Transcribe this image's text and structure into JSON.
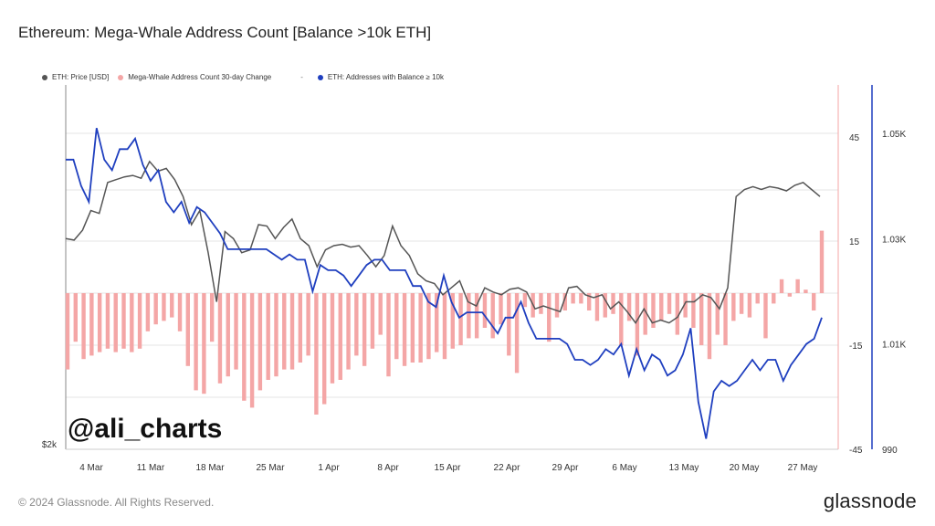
{
  "title": "Ethereum: Mega-Whale Address Count [Balance >10k ETH]",
  "legend": [
    {
      "label": "ETH: Price [USD]",
      "color": "#555555"
    },
    {
      "label": "Mega-Whale Address Count 30-day Change",
      "color": "#f4a6a6"
    },
    {
      "label": "ETH: Addresses with Balance ≥ 10k",
      "color": "#1f3fbf"
    }
  ],
  "legend_sep": "-",
  "watermark": "@ali_charts",
  "footer": "© 2024 Glassnode. All Rights Reserved.",
  "brand": "glassnode",
  "chart_data": {
    "type": "line",
    "x_tick_labels": [
      "4 Mar",
      "11 Mar",
      "18 Mar",
      "25 Mar",
      "1 Apr",
      "8 Apr",
      "15 Apr",
      "22 Apr",
      "29 Apr",
      "6 May",
      "13 May",
      "20 May",
      "27 May"
    ],
    "left_axis_label": "$2k",
    "y_right_inner": {
      "ticks": [
        "45",
        "15",
        "-15",
        "-45"
      ],
      "range": [
        -45,
        45
      ]
    },
    "y_right_outer": {
      "ticks": [
        "1.05K",
        "1.03K",
        "1.01K",
        "990"
      ],
      "range": [
        990,
        1050
      ]
    },
    "series": [
      {
        "name": "ETH: Price [USD]",
        "color": "#555555",
        "axis": "price",
        "values": [
          3500,
          3490,
          3560,
          3700,
          3680,
          3900,
          3920,
          3940,
          3950,
          3930,
          4050,
          3980,
          4000,
          3920,
          3800,
          3600,
          3700,
          3400,
          3050,
          3550,
          3500,
          3400,
          3420,
          3600,
          3590,
          3500,
          3580,
          3640,
          3500,
          3450,
          3300,
          3420,
          3450,
          3460,
          3440,
          3450,
          3380,
          3300,
          3380,
          3590,
          3450,
          3380,
          3250,
          3200,
          3180,
          3100,
          3150,
          3200,
          3050,
          3020,
          3150,
          3120,
          3100,
          3140,
          3150,
          3120,
          3000,
          3020,
          3000,
          2980,
          3150,
          3160,
          3100,
          3080,
          3100,
          3000,
          3050,
          2980,
          2900,
          3000,
          2900,
          2920,
          2900,
          2940,
          3050,
          3050,
          3100,
          3080,
          3000,
          3150,
          3800,
          3850,
          3870,
          3850,
          3870,
          3860,
          3840,
          3880,
          3900,
          3850,
          3800
        ]
      },
      {
        "name": "Mega-Whale Address Count 30-day Change",
        "color": "#f4a6a6",
        "axis": "inner",
        "values": [
          -22,
          -14,
          -19,
          -18,
          -17,
          -16,
          -17,
          -16,
          -17,
          -16,
          -11,
          -9,
          -8,
          -7,
          -11,
          -21,
          -28,
          -29,
          -14,
          -26,
          -24,
          -22,
          -31,
          -33,
          -28,
          -25,
          -24,
          -22,
          -22,
          -20,
          -18,
          -35,
          -32,
          -26,
          -25,
          -22,
          -18,
          -21,
          -16,
          -12,
          -24,
          -19,
          -21,
          -20,
          -20,
          -19,
          -17,
          -19,
          -16,
          -15,
          -13,
          -13,
          -10,
          -13,
          -9,
          -18,
          -23,
          -4,
          -7,
          -6,
          -14,
          -7,
          -5,
          -3,
          -3,
          -5,
          -8,
          -7,
          -6,
          -15,
          -8,
          -18,
          -12,
          -10,
          -8,
          -6,
          -12,
          -7,
          -10,
          -15,
          -19,
          -12,
          -15,
          -8,
          -6,
          -7,
          -3,
          -13,
          -3,
          4,
          -1,
          4,
          1,
          -5,
          18
        ]
      },
      {
        "name": "ETH: Addresses with Balance ≥ 10k",
        "color": "#1f3fbf",
        "axis": "outer",
        "values": [
          1045,
          1045,
          1040,
          1037,
          1051,
          1045,
          1043,
          1047,
          1047,
          1049,
          1044,
          1041,
          1043,
          1037,
          1035,
          1037,
          1033,
          1036,
          1035,
          1033,
          1031,
          1028,
          1028,
          1028,
          1028,
          1028,
          1028,
          1027,
          1026,
          1027,
          1026,
          1026,
          1020,
          1025,
          1024,
          1024,
          1023,
          1021,
          1023,
          1025,
          1026,
          1026,
          1024,
          1024,
          1024,
          1021,
          1021,
          1018,
          1017,
          1023,
          1018,
          1015,
          1016,
          1016,
          1016,
          1014,
          1012,
          1015,
          1015,
          1018,
          1014,
          1011,
          1011,
          1011,
          1011,
          1010,
          1007,
          1007,
          1006,
          1007,
          1009,
          1008,
          1010,
          1004,
          1009,
          1005,
          1008,
          1007,
          1004,
          1005,
          1008,
          1013,
          999,
          992,
          1001,
          1003,
          1002,
          1003,
          1005,
          1007,
          1005,
          1007,
          1007,
          1003,
          1006,
          1008,
          1010,
          1011,
          1015
        ]
      }
    ],
    "grid": true,
    "legend_position": "top-left"
  }
}
